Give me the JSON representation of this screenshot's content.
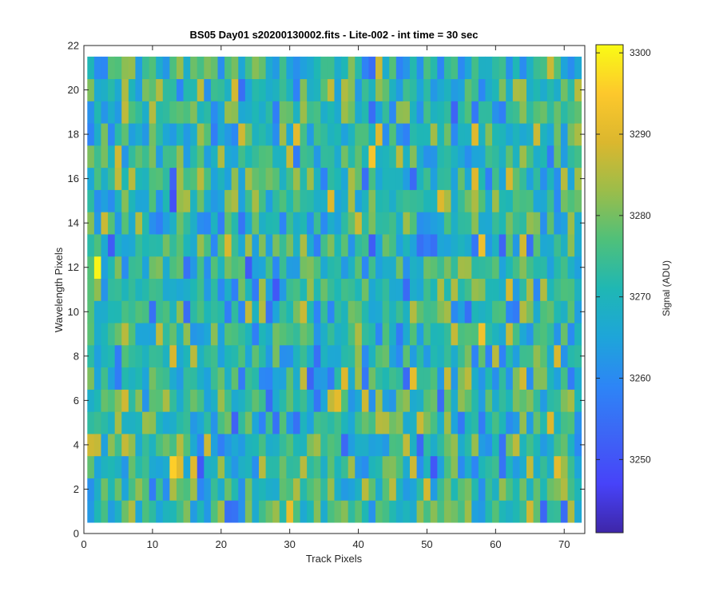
{
  "chart_data": {
    "type": "heatmap",
    "title": "BS05 Day01  s20200130002.fits - Lite-002 - int time = 30 sec",
    "xlabel": "Track Pixels",
    "ylabel": "Wavelength Pixels",
    "xlim": [
      0,
      73
    ],
    "ylim": [
      0,
      22
    ],
    "x_ticks": [
      0,
      10,
      20,
      30,
      40,
      50,
      60,
      70
    ],
    "y_ticks": [
      0,
      2,
      4,
      6,
      8,
      10,
      12,
      14,
      16,
      18,
      20,
      22
    ],
    "x_cells": [
      1,
      72
    ],
    "y_cells": [
      1,
      21
    ],
    "colormap": "parula",
    "colorbar": {
      "label": "Signal (ADU)",
      "range": [
        3241,
        3301
      ],
      "ticks": [
        3250,
        3260,
        3270,
        3280,
        3290,
        3300
      ]
    },
    "grid": false,
    "notes": "Per-pixel values in 3241-3301 ADU; individual cell values are not printed."
  }
}
